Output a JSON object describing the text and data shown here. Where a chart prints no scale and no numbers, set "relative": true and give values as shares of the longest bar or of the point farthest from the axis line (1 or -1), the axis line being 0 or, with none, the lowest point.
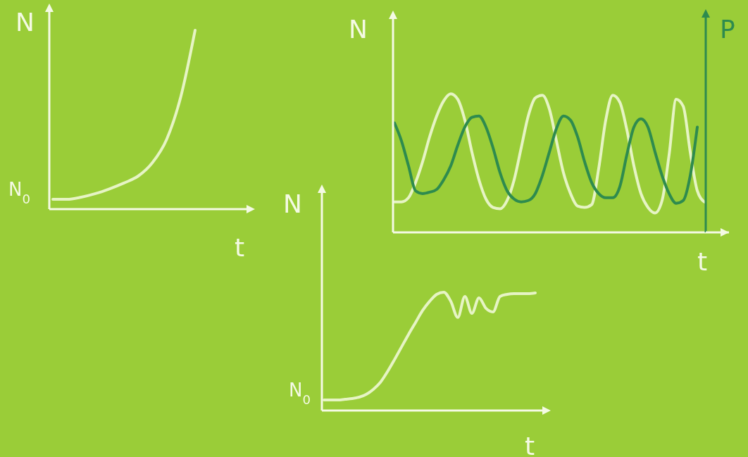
{
  "chart_data": [
    {
      "type": "line",
      "relative": true,
      "ylabel": "N",
      "xlabel": "t",
      "marker": "none",
      "annotations": [
        "N$_{0}$"
      ],
      "categories": [
        null,
        null,
        null,
        null,
        null,
        null,
        null,
        null,
        null,
        null,
        null
      ],
      "series": [
        {
          "color": "#e6f4c4",
          "values": [
            0.055,
            0.055,
            0.067,
            0.087,
            0.114,
            0.146,
            0.185,
            0.26,
            0.39,
            0.63,
            1
          ]
        }
      ]
    },
    {
      "type": "line",
      "relative": true,
      "ylabel": "N",
      "y2label": "P",
      "xlabel": "t",
      "marker": "none",
      "categories": [
        null,
        null,
        null,
        null,
        null,
        null,
        null,
        null,
        null,
        null,
        null,
        null,
        null,
        null,
        null,
        null,
        null,
        null,
        null,
        null,
        null,
        null,
        null,
        null,
        null,
        null,
        null,
        null,
        null,
        null,
        null,
        null,
        null,
        null,
        null,
        null,
        null,
        null,
        null,
        null,
        null,
        null,
        null,
        null,
        null
      ],
      "series": [
        {
          "color": "#e6f4c4",
          "values": [
            0.22,
            0.22,
            0.25,
            0.36,
            0.51,
            0.69,
            0.84,
            0.95,
            1,
            0.96,
            0.81,
            0.58,
            0.38,
            0.24,
            0.18,
            0.17,
            0.23,
            0.38,
            0.61,
            0.84,
            0.97,
            0.99,
            0.89,
            0.66,
            0.43,
            0.28,
            0.19,
            0.18,
            0.2,
            0.46,
            0.81,
            0.99,
            0.94,
            0.74,
            0.48,
            0.28,
            0.18,
            0.14,
            0.23,
            0.56,
            0.96,
            0.91,
            0.58,
            0.3,
            0.22
          ]
        },
        {
          "color": "#2e8b4e",
          "values": [
            0.79,
            0.66,
            0.48,
            0.3,
            0.28,
            0.29,
            0.31,
            0.38,
            0.48,
            0.63,
            0.76,
            0.83,
            0.84,
            0.76,
            0.61,
            0.43,
            0.3,
            0.24,
            0.22,
            0.23,
            0.28,
            0.41,
            0.58,
            0.75,
            0.84,
            0.81,
            0.69,
            0.51,
            0.36,
            0.28,
            0.25,
            0.25,
            0.33,
            0.56,
            0.76,
            0.82,
            0.76,
            0.58,
            0.41,
            0.28,
            0.21,
            0.23,
            0.41,
            0.76,
            null
          ]
        }
      ]
    },
    {
      "type": "line",
      "relative": true,
      "ylabel": "N",
      "xlabel": "t",
      "marker": "none",
      "annotations": [
        "N$_{0}$"
      ],
      "categories": [
        null,
        null,
        null,
        null,
        null,
        null,
        null,
        null,
        null,
        null,
        null,
        null,
        null,
        null,
        null,
        null,
        null,
        null,
        null,
        null,
        null,
        null,
        null,
        null,
        null,
        null,
        null,
        null,
        null,
        null,
        null
      ],
      "series": [
        {
          "color": "#e6f4c4",
          "values": [
            0.089,
            0.089,
            0.089,
            0.095,
            0.101,
            0.113,
            0.137,
            0.179,
            0.238,
            0.327,
            0.429,
            0.536,
            0.643,
            0.744,
            0.845,
            0.923,
            0.982,
            1,
            0.923,
            0.786,
            0.964,
            0.821,
            0.952,
            0.863,
            0.833,
            0.964,
            0.982,
            0.988,
            0.988,
            0.988,
            0.994
          ]
        }
      ]
    }
  ]
}
